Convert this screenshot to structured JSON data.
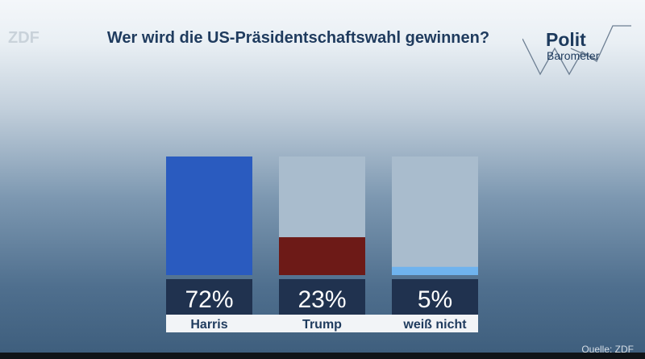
{
  "broadcaster_logo": "ZDF",
  "brand": {
    "word": "Polit",
    "sub": "Barometer"
  },
  "source": "Quelle: ZDF",
  "colors": {
    "track": "#a9bccd",
    "label_box": "#20324f",
    "name_band": "#f2f4f7"
  },
  "chart_data": {
    "type": "bar",
    "title": "Wer wird die US-Präsidentschaftswahl gewinnen?",
    "categories": [
      "Harris",
      "Trump",
      "weiß nicht"
    ],
    "values": [
      72,
      23,
      5
    ],
    "value_labels": [
      "72%",
      "23%",
      "5%"
    ],
    "colors": [
      "#2a5bbf",
      "#6d1a17",
      "#6fb3ee"
    ],
    "ylim": [
      0,
      72
    ],
    "grid": false,
    "legend": "none"
  }
}
